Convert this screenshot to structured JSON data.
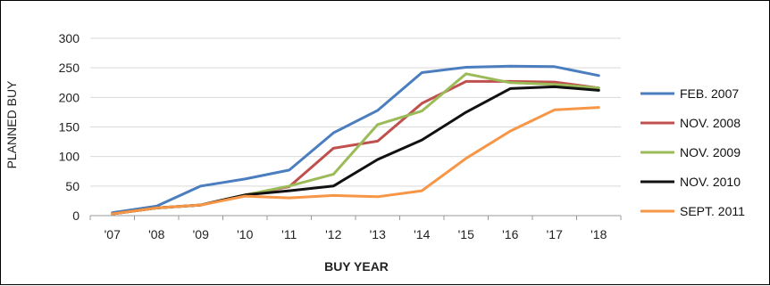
{
  "chart_data": {
    "type": "line",
    "title": "",
    "xlabel": "BUY YEAR",
    "ylabel": "PLANNED BUY",
    "categories": [
      "'07",
      "'08",
      "'09",
      "'10",
      "'11",
      "'12",
      "'13",
      "'14",
      "'15",
      "'16",
      "'17",
      "'18"
    ],
    "ylim": [
      0,
      300
    ],
    "yticks": [
      "0",
      "50",
      "100",
      "150",
      "200",
      "250",
      "300"
    ],
    "grid": true,
    "legend_position": "right",
    "series": [
      {
        "name": "FEB. 2007",
        "color": "#4a7ebf",
        "values": [
          5,
          16,
          50,
          62,
          77,
          140,
          178,
          242,
          251,
          253,
          252,
          237
        ]
      },
      {
        "name": "NOV. 2008",
        "color": "#c0504d",
        "values": [
          3,
          13,
          18,
          35,
          49,
          114,
          126,
          190,
          227,
          227,
          226,
          216
        ]
      },
      {
        "name": "NOV. 2009",
        "color": "#9bbb59",
        "values": [
          3,
          13,
          18,
          35,
          50,
          70,
          154,
          177,
          240,
          225,
          222,
          216
        ]
      },
      {
        "name": "NOV. 2010",
        "color": "#111111",
        "values": [
          3,
          13,
          18,
          35,
          42,
          50,
          95,
          128,
          175,
          215,
          218,
          212
        ]
      },
      {
        "name": "SEPT. 2011",
        "color": "#f79646",
        "values": [
          3,
          13,
          18,
          33,
          30,
          34,
          32,
          42,
          97,
          143,
          179,
          183
        ]
      }
    ]
  }
}
